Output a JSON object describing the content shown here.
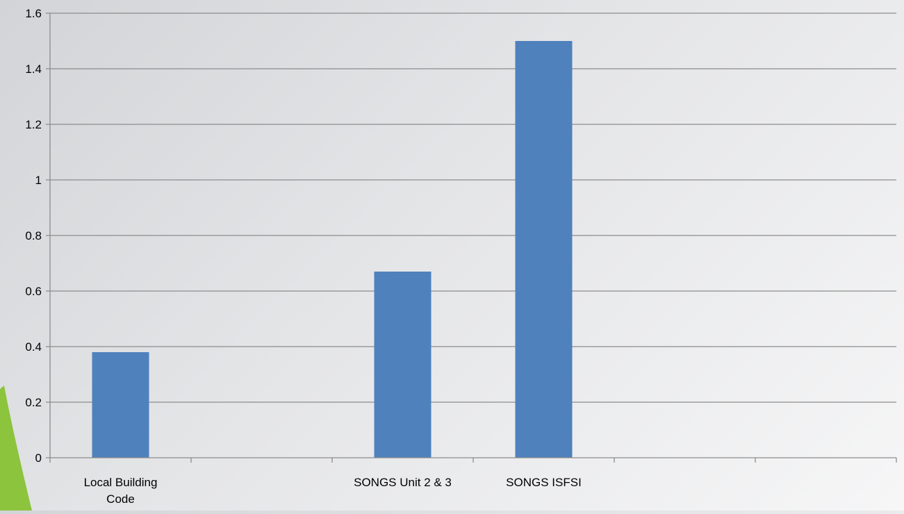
{
  "chart_data": {
    "type": "bar",
    "title": "",
    "xlabel": "",
    "ylabel": "",
    "categories": [
      [
        "Local Building",
        "Code"
      ],
      [
        ""
      ],
      [
        "SONGS Unit 2 & 3"
      ],
      [
        "SONGS ISFSI"
      ],
      [
        ""
      ],
      [
        ""
      ]
    ],
    "values": [
      0.38,
      null,
      0.67,
      1.5,
      null,
      null
    ],
    "ylim": [
      0,
      1.6
    ],
    "yticks": [
      0,
      0.2,
      0.4,
      0.6,
      0.8,
      1,
      1.2,
      1.4,
      1.6
    ],
    "grid": true,
    "legend": "none",
    "bar_color": "#4f81bd",
    "grid_color": "#8c8c8c",
    "accent_color": "#8cc43e"
  }
}
